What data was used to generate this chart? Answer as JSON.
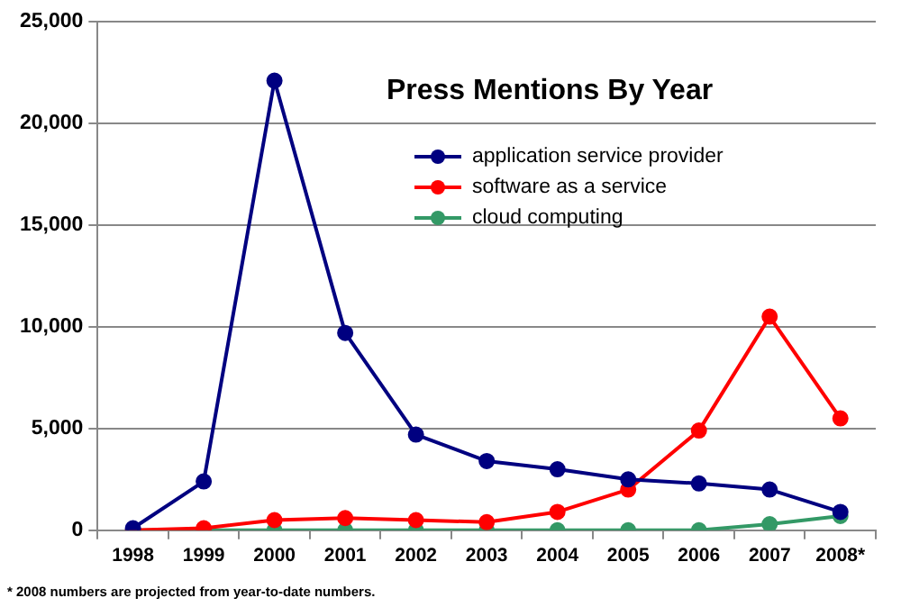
{
  "chart_data": {
    "type": "line",
    "title": "Press Mentions By Year",
    "categories": [
      "1998",
      "1999",
      "2000",
      "2001",
      "2002",
      "2003",
      "2004",
      "2005",
      "2006",
      "2007",
      "2008*"
    ],
    "series": [
      {
        "name": "application service provider",
        "color": "#000080",
        "values": [
          100,
          2400,
          22100,
          9700,
          4700,
          3400,
          3000,
          2500,
          2300,
          2000,
          900
        ]
      },
      {
        "name": "software as a service",
        "color": "#ff0000",
        "values": [
          0,
          100,
          500,
          600,
          500,
          400,
          900,
          2000,
          4900,
          10500,
          5500
        ]
      },
      {
        "name": "cloud computing",
        "color": "#339966",
        "values": [
          0,
          0,
          0,
          0,
          0,
          0,
          0,
          0,
          0,
          300,
          700
        ]
      }
    ],
    "ylim": [
      0,
      25000
    ],
    "yticks": [
      0,
      {
        "value": 5000,
        "label": "5,000"
      },
      {
        "value": 10000,
        "label": "10,000"
      },
      {
        "value": 15000,
        "label": "15,000"
      },
      {
        "value": 20000,
        "label": "20,000"
      },
      {
        "value": 25000,
        "label": "25,000"
      }
    ],
    "grid": "y",
    "legend": "top right",
    "marker": "circle",
    "line_style": "solid",
    "annotations": [
      "* 2008 numbers are projected from year-to-date numbers."
    ]
  }
}
